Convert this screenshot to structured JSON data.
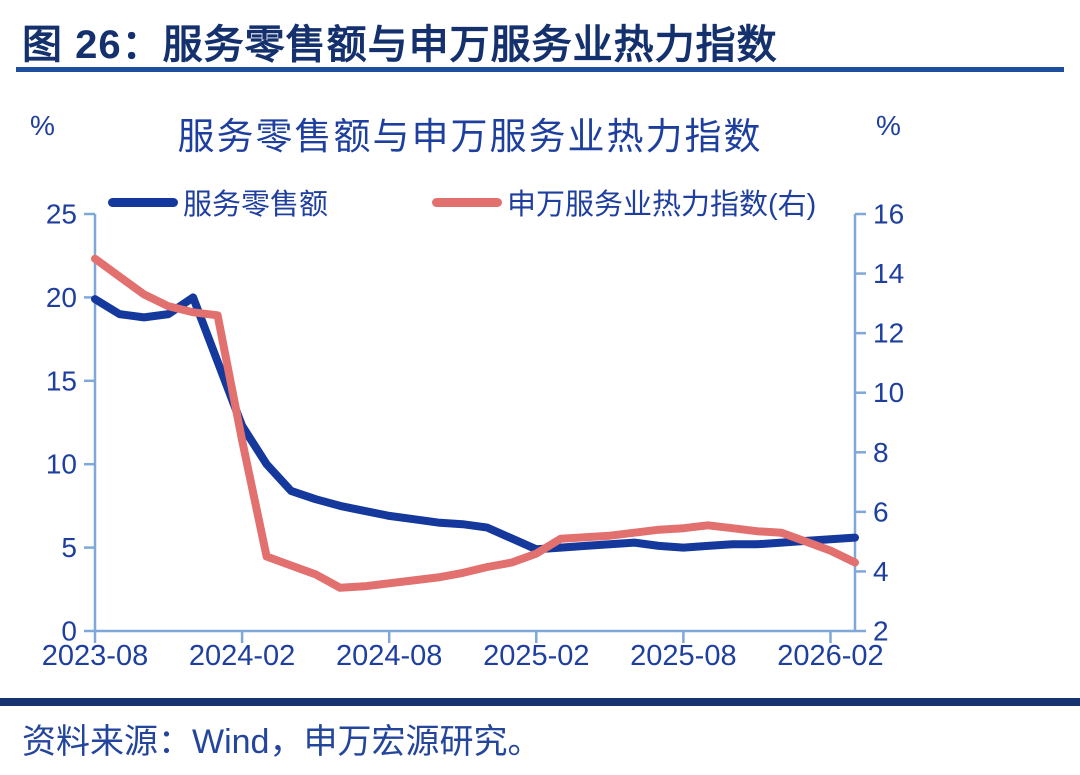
{
  "header": {
    "title": "图 26：服务零售额与申万服务业热力指数"
  },
  "chart": {
    "title": "服务零售额与申万服务业热力指数",
    "left_unit": "%",
    "right_unit": "%"
  },
  "chart_data": {
    "type": "line",
    "title": "服务零售额与申万服务业热力指数",
    "grid": false,
    "legend_position": "top",
    "x": [
      "2023-08",
      "2023-09",
      "2023-10",
      "2023-11",
      "2023-12",
      "2024-01",
      "2024-02",
      "2024-03",
      "2024-04",
      "2024-05",
      "2024-06",
      "2024-07",
      "2024-08",
      "2024-09",
      "2024-10",
      "2024-11",
      "2024-12",
      "2025-01",
      "2025-02",
      "2025-03",
      "2025-04",
      "2025-05",
      "2025-06",
      "2025-07",
      "2025-08",
      "2025-09",
      "2025-10",
      "2025-11",
      "2025-12",
      "2026-01",
      "2026-02",
      "2026-03"
    ],
    "x_tick_labels": [
      "2023-08",
      "2024-02",
      "2024-08",
      "2025-02",
      "2025-08",
      "2026-02"
    ],
    "x_tick_indices": [
      0,
      6,
      12,
      18,
      24,
      30
    ],
    "left_axis": {
      "unit": "%",
      "min": 0,
      "max": 25,
      "ticks": [
        0,
        5,
        10,
        15,
        20,
        25
      ]
    },
    "right_axis": {
      "unit": "%",
      "min": 2,
      "max": 16,
      "ticks": [
        2,
        4,
        6,
        8,
        10,
        12,
        14,
        16
      ]
    },
    "series": [
      {
        "name": "服务零售额",
        "axis": "left",
        "color": "#14389c",
        "values": [
          19.9,
          19.0,
          18.8,
          19.0,
          20.0,
          null,
          12.3,
          10.0,
          8.4,
          7.9,
          7.5,
          7.2,
          6.9,
          6.7,
          6.5,
          6.4,
          6.2,
          null,
          4.9,
          5.0,
          5.1,
          5.2,
          5.3,
          5.1,
          5.0,
          5.1,
          5.2,
          5.2,
          5.3,
          5.4,
          5.5,
          5.6
        ]
      },
      {
        "name": "申万服务业热力指数(右)",
        "axis": "right",
        "color": "#e2706e",
        "values": [
          14.5,
          13.9,
          13.3,
          12.9,
          12.7,
          12.6,
          8.4,
          4.5,
          4.2,
          3.9,
          3.45,
          3.5,
          3.6,
          3.7,
          3.8,
          3.95,
          4.15,
          4.3,
          4.6,
          5.1,
          5.15,
          5.2,
          5.3,
          5.4,
          5.45,
          5.55,
          5.45,
          5.35,
          5.3,
          5.0,
          4.7,
          4.3
        ]
      }
    ]
  },
  "footer": {
    "source": "资料来源：Wind，申万宏源研究。"
  },
  "colors": {
    "header_text": "#14316e",
    "header_rule": "#1e4f9f",
    "chart_text": "#1e3f9e",
    "axis_line": "#7fa8d8",
    "series_blue": "#14389c",
    "series_red": "#e2706e",
    "footer_rule": "#16356f",
    "footer_text": "#24459c"
  }
}
